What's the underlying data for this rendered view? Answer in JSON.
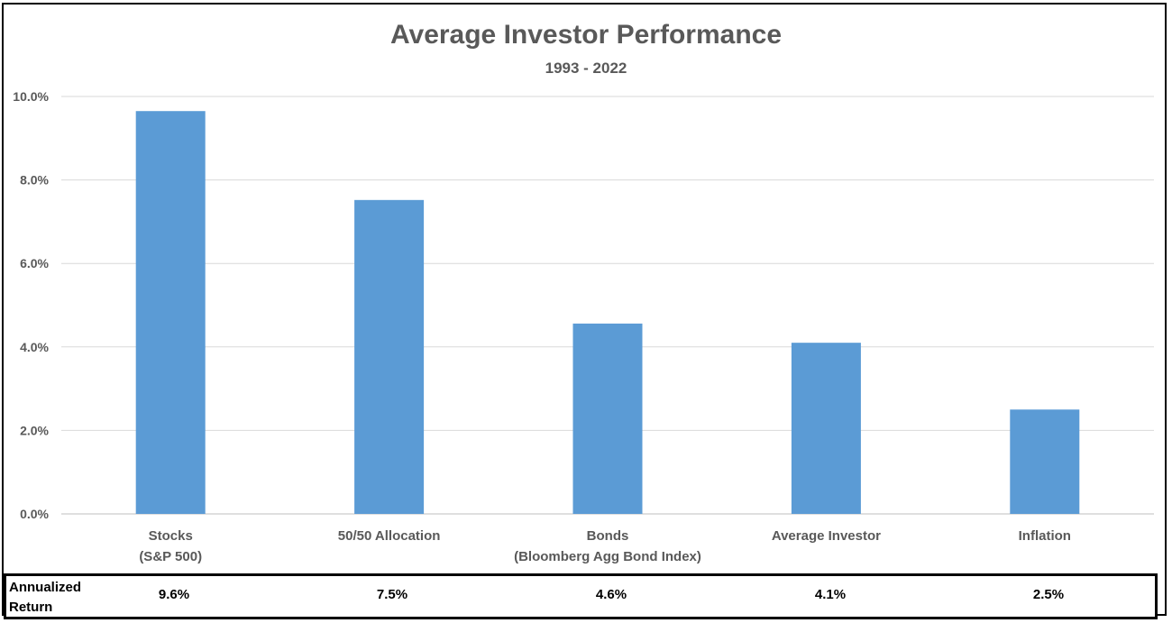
{
  "chart_data": {
    "type": "bar",
    "title": "Average Investor Performance",
    "subtitle": "1993 - 2022",
    "categories": [
      [
        "Stocks",
        "(S&P 500)"
      ],
      [
        "50/50 Allocation"
      ],
      [
        "Bonds",
        "(Bloomberg Agg Bond Index)"
      ],
      [
        "Average Investor"
      ],
      [
        "Inflation"
      ]
    ],
    "values": [
      9.65,
      7.52,
      4.56,
      4.1,
      2.5
    ],
    "ylim": [
      0,
      10
    ],
    "yticks": [
      "0.0%",
      "2.0%",
      "4.0%",
      "6.0%",
      "8.0%",
      "10.0%"
    ],
    "bar_color": "#5b9bd5",
    "grid": true,
    "legend": "none"
  },
  "table": {
    "row_label": "Annualized Return",
    "values": [
      "9.6%",
      "7.5%",
      "4.6%",
      "4.1%",
      "2.5%"
    ]
  }
}
